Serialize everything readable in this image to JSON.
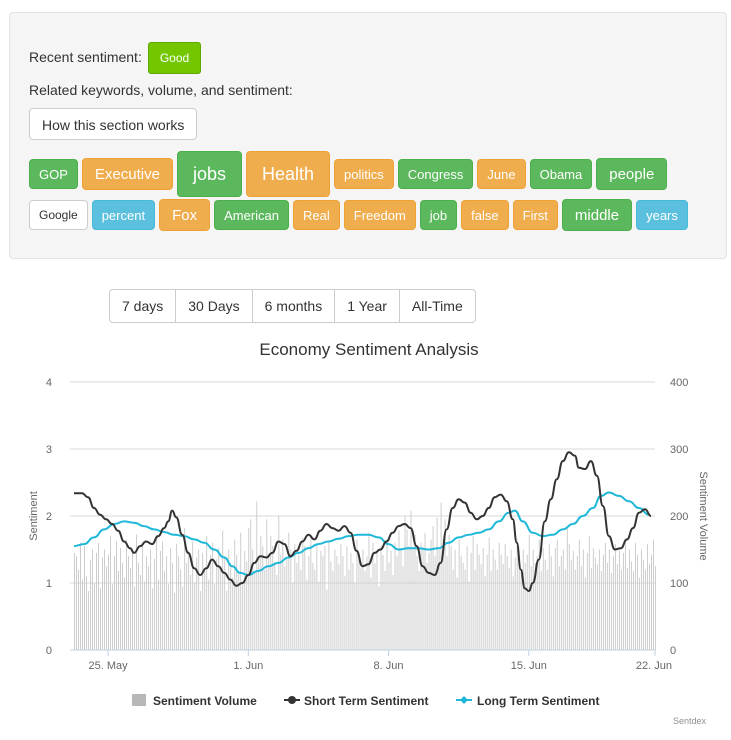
{
  "panel": {
    "recent_label": "Recent sentiment:",
    "recent_value": "Good",
    "related_label": "Related keywords, volume, and sentiment:",
    "how_button": "How this section works",
    "keywords_row1": [
      {
        "text": "GOP",
        "color": "green",
        "size": 13
      },
      {
        "text": "Executive",
        "color": "orange",
        "size": 15
      },
      {
        "text": "jobs",
        "color": "green",
        "size": 18
      },
      {
        "text": "Health",
        "color": "orange",
        "size": 18
      },
      {
        "text": "politics",
        "color": "orange",
        "size": 13
      },
      {
        "text": "Congress",
        "color": "green",
        "size": 13
      },
      {
        "text": "June",
        "color": "orange",
        "size": 13
      },
      {
        "text": "Obama",
        "color": "green",
        "size": 13
      },
      {
        "text": "people",
        "color": "green",
        "size": 15
      }
    ],
    "keywords_row2": [
      {
        "text": "Google",
        "color": "white",
        "size": 12
      },
      {
        "text": "percent",
        "color": "blue",
        "size": 13
      },
      {
        "text": "Fox",
        "color": "orange",
        "size": 15
      },
      {
        "text": "American",
        "color": "green",
        "size": 13
      },
      {
        "text": "Real",
        "color": "orange",
        "size": 13
      },
      {
        "text": "Freedom",
        "color": "orange",
        "size": 13
      },
      {
        "text": "job",
        "color": "green",
        "size": 13
      },
      {
        "text": "false",
        "color": "orange",
        "size": 13
      },
      {
        "text": "First",
        "color": "orange",
        "size": 13
      },
      {
        "text": "middle",
        "color": "green",
        "size": 15
      },
      {
        "text": "years",
        "color": "blue",
        "size": 13
      }
    ]
  },
  "range_buttons": [
    "7 days",
    "30 Days",
    "6 months",
    "1 Year",
    "All-Time"
  ],
  "credit": "Sentdex",
  "chart_data": {
    "type": "line",
    "title": "Economy Sentiment Analysis",
    "ylabel_left": "Sentiment",
    "ylabel_right": "Sentiment Volume",
    "ylim_left": [
      0,
      4
    ],
    "yticks_left": [
      "0",
      "1",
      "2",
      "3",
      "4"
    ],
    "ylim_right": [
      0,
      400
    ],
    "yticks_right": [
      "0",
      "100",
      "200",
      "300",
      "400"
    ],
    "x_range_days": [
      23.1,
      52.3
    ],
    "x_ticks": [
      {
        "label": "25. May",
        "day": 25
      },
      {
        "label": "1. Jun",
        "day": 32
      },
      {
        "label": "8. Jun",
        "day": 39
      },
      {
        "label": "15. Jun",
        "day": 46
      },
      {
        "label": "22. Jun",
        "day": 53
      }
    ],
    "grid": true,
    "legend_position": "bottom",
    "series": [
      {
        "name": "Short Term Sentiment",
        "color": "#333333",
        "points": [
          [
            23.3,
            2.34
          ],
          [
            23.7,
            2.34
          ],
          [
            24.0,
            2.28
          ],
          [
            24.3,
            2.12
          ],
          [
            24.6,
            2.02
          ],
          [
            24.9,
            1.95
          ],
          [
            25.2,
            1.88
          ],
          [
            25.5,
            1.78
          ],
          [
            25.8,
            1.62
          ],
          [
            26.1,
            1.52
          ],
          [
            26.3,
            1.45
          ],
          [
            26.6,
            1.55
          ],
          [
            26.9,
            1.62
          ],
          [
            27.2,
            1.58
          ],
          [
            27.5,
            1.7
          ],
          [
            27.8,
            1.82
          ],
          [
            28.0,
            1.92
          ],
          [
            28.2,
            2.08
          ],
          [
            28.4,
            1.98
          ],
          [
            28.7,
            1.72
          ],
          [
            29.0,
            1.45
          ],
          [
            29.3,
            1.22
          ],
          [
            29.6,
            1.12
          ],
          [
            29.9,
            1.22
          ],
          [
            30.2,
            1.35
          ],
          [
            30.5,
            1.25
          ],
          [
            30.8,
            1.15
          ],
          [
            31.1,
            1.05
          ],
          [
            31.4,
            0.96
          ],
          [
            31.7,
            1.0
          ],
          [
            32.0,
            1.12
          ],
          [
            32.3,
            1.3
          ],
          [
            32.6,
            1.4
          ],
          [
            32.9,
            1.38
          ],
          [
            33.2,
            1.45
          ],
          [
            33.5,
            1.62
          ],
          [
            33.8,
            1.58
          ],
          [
            34.1,
            1.4
          ],
          [
            34.4,
            1.48
          ],
          [
            34.7,
            1.62
          ],
          [
            35.0,
            1.72
          ],
          [
            35.3,
            1.65
          ],
          [
            35.6,
            1.78
          ],
          [
            35.9,
            1.88
          ],
          [
            36.2,
            1.82
          ],
          [
            36.5,
            1.78
          ],
          [
            36.8,
            1.85
          ],
          [
            37.1,
            1.75
          ],
          [
            37.4,
            1.48
          ],
          [
            37.7,
            1.25
          ],
          [
            38.0,
            1.28
          ],
          [
            38.3,
            1.45
          ],
          [
            38.6,
            1.5
          ],
          [
            38.9,
            1.62
          ],
          [
            39.2,
            1.75
          ],
          [
            39.5,
            1.85
          ],
          [
            39.8,
            1.88
          ],
          [
            40.1,
            1.82
          ],
          [
            40.4,
            1.55
          ],
          [
            40.7,
            1.25
          ],
          [
            41.0,
            1.15
          ],
          [
            41.3,
            1.12
          ],
          [
            41.6,
            1.3
          ],
          [
            41.9,
            1.8
          ],
          [
            42.2,
            2.12
          ],
          [
            42.5,
            2.25
          ],
          [
            42.8,
            2.2
          ],
          [
            43.1,
            2.05
          ],
          [
            43.4,
            1.95
          ],
          [
            43.7,
            2.0
          ],
          [
            44.0,
            2.12
          ],
          [
            44.3,
            2.28
          ],
          [
            44.6,
            2.32
          ],
          [
            44.9,
            2.22
          ],
          [
            45.2,
            1.95
          ],
          [
            45.4,
            1.6
          ],
          [
            45.6,
            1.2
          ],
          [
            45.8,
            0.92
          ],
          [
            46.0,
            0.88
          ],
          [
            46.2,
            1.0
          ],
          [
            46.5,
            1.35
          ],
          [
            46.8,
            1.92
          ],
          [
            47.1,
            2.25
          ],
          [
            47.4,
            2.55
          ],
          [
            47.7,
            2.82
          ],
          [
            48.0,
            2.95
          ],
          [
            48.3,
            2.9
          ],
          [
            48.5,
            2.72
          ],
          [
            48.8,
            2.7
          ],
          [
            49.1,
            2.82
          ],
          [
            49.4,
            2.6
          ],
          [
            49.7,
            2.15
          ],
          [
            50.0,
            1.7
          ],
          [
            50.3,
            1.5
          ],
          [
            50.6,
            1.52
          ],
          [
            50.9,
            1.65
          ],
          [
            51.2,
            1.82
          ],
          [
            51.5,
            2.05
          ],
          [
            51.8,
            2.1
          ],
          [
            52.1,
            2.0
          ],
          [
            52.4,
            1.88
          ],
          [
            52.7,
            2.0
          ],
          [
            53.0,
            2.05
          ],
          [
            53.3,
            1.92
          ],
          [
            53.6,
            1.95
          ],
          [
            53.9,
            1.92
          ]
        ]
      },
      {
        "name": "Long Term Sentiment",
        "color": "#1fb8d8",
        "points": [
          [
            23.3,
            1.55
          ],
          [
            23.8,
            1.58
          ],
          [
            24.3,
            1.68
          ],
          [
            24.8,
            1.8
          ],
          [
            25.3,
            1.88
          ],
          [
            25.8,
            1.92
          ],
          [
            26.3,
            1.9
          ],
          [
            26.8,
            1.85
          ],
          [
            27.3,
            1.8
          ],
          [
            27.8,
            1.76
          ],
          [
            28.3,
            1.72
          ],
          [
            28.8,
            1.7
          ],
          [
            29.3,
            1.65
          ],
          [
            29.8,
            1.6
          ],
          [
            30.3,
            1.5
          ],
          [
            30.8,
            1.38
          ],
          [
            31.2,
            1.25
          ],
          [
            31.6,
            1.15
          ],
          [
            32.0,
            1.12
          ],
          [
            32.5,
            1.18
          ],
          [
            33.0,
            1.25
          ],
          [
            33.5,
            1.3
          ],
          [
            34.0,
            1.38
          ],
          [
            34.5,
            1.45
          ],
          [
            35.0,
            1.52
          ],
          [
            35.5,
            1.58
          ],
          [
            36.0,
            1.62
          ],
          [
            36.5,
            1.66
          ],
          [
            37.0,
            1.7
          ],
          [
            37.5,
            1.72
          ],
          [
            38.0,
            1.72
          ],
          [
            38.5,
            1.68
          ],
          [
            39.0,
            1.58
          ],
          [
            39.5,
            1.5
          ],
          [
            40.0,
            1.52
          ],
          [
            40.5,
            1.52
          ],
          [
            41.0,
            1.5
          ],
          [
            41.5,
            1.52
          ],
          [
            42.0,
            1.6
          ],
          [
            42.5,
            1.68
          ],
          [
            43.0,
            1.72
          ],
          [
            43.5,
            1.75
          ],
          [
            44.0,
            1.8
          ],
          [
            44.5,
            1.92
          ],
          [
            45.0,
            2.05
          ],
          [
            45.3,
            2.08
          ],
          [
            45.7,
            1.92
          ],
          [
            46.2,
            1.75
          ],
          [
            46.7,
            1.7
          ],
          [
            47.2,
            1.72
          ],
          [
            47.7,
            1.8
          ],
          [
            48.2,
            1.88
          ],
          [
            48.7,
            2.0
          ],
          [
            49.2,
            2.12
          ],
          [
            49.6,
            2.3
          ],
          [
            50.0,
            2.35
          ],
          [
            50.5,
            2.3
          ],
          [
            51.0,
            2.22
          ],
          [
            51.5,
            2.12
          ],
          [
            52.0,
            2.02
          ],
          [
            52.5,
            1.92
          ],
          [
            52.8,
            1.82
          ],
          [
            53.2,
            1.85
          ],
          [
            53.6,
            1.92
          ],
          [
            53.9,
            1.9
          ]
        ]
      }
    ],
    "volume_series": {
      "name": "Sentiment Volume",
      "color": "#c8c8c8",
      "start_day": 23.3,
      "step_days": 0.1,
      "values": [
        145,
        140,
        120,
        160,
        105,
        155,
        110,
        88,
        135,
        150,
        100,
        145,
        160,
        92,
        138,
        150,
        125,
        142,
        170,
        98,
        140,
        162,
        118,
        152,
        130,
        108,
        165,
        140,
        122,
        148,
        95,
        172,
        130,
        112,
        158,
        102,
        140,
        125,
        150,
        92,
        136,
        170,
        105,
        148,
        162,
        118,
        140,
        98,
        152,
        130,
        85,
        158,
        140,
        120,
        95,
        182,
        130,
        148,
        112,
        162,
        100,
        138,
        150,
        88,
        145,
        122,
        170,
        105,
        142,
        160,
        98,
        135,
        152,
        120,
        178,
        140,
        88,
        150,
        130,
        108,
        165,
        142,
        118,
        175,
        100,
        148,
        132,
        182,
        195,
        150,
        118,
        222,
        140,
        170,
        155,
        120,
        195,
        140,
        170,
        155,
        130,
        112,
        200,
        142,
        165,
        125,
        138,
        175,
        150,
        100,
        158,
        130,
        142,
        120,
        168,
        155,
        105,
        140,
        172,
        130,
        120,
        158,
        102,
        148,
        140,
        155,
        90,
        162,
        132,
        118,
        150,
        140,
        128,
        158,
        140,
        110,
        155,
        120,
        145,
        130,
        100,
        165,
        142,
        122,
        150,
        118,
        140,
        175,
        108,
        160,
        130,
        148,
        95,
        155,
        142,
        118,
        165,
        130,
        148,
        112,
        160,
        140,
        178,
        152,
        125,
        200,
        180,
        155,
        208,
        150,
        172,
        140,
        118,
        160,
        150,
        175,
        130,
        145,
        165,
        185,
        140,
        198,
        150,
        220,
        165,
        195,
        140,
        172,
        155,
        120,
        150,
        108,
        165,
        140,
        130,
        120,
        155,
        102,
        145,
        170,
        120,
        158,
        142,
        128,
        152,
        110,
        142,
        168,
        118,
        150,
        135,
        120,
        160,
        142,
        128,
        158,
        140,
        122,
        150,
        110,
        138,
        165,
        142,
        120,
        150,
        130,
        142,
        172,
        125,
        150,
        130,
        140,
        165,
        118,
        152,
        135,
        120,
        158,
        140,
        110,
        152,
        165,
        125,
        140,
        150,
        120,
        182,
        158,
        135,
        148,
        120,
        140,
        165,
        125,
        150,
        108,
        145,
        170,
        122,
        152,
        138,
        128,
        150,
        118,
        142,
        160,
        130,
        150,
        115,
        140,
        158,
        128,
        148,
        120,
        145,
        162,
        122,
        150,
        132,
        118,
        160,
        142,
        108,
        150,
        135,
        120,
        158,
        128,
        142,
        165,
        125,
        150,
        118,
        140,
        172,
        130,
        125,
        152,
        138,
        160,
        128,
        148,
        120,
        142,
        102,
        155,
        158,
        118,
        132,
        148,
        165,
        150,
        125,
        160,
        120,
        168,
        140,
        130,
        155,
        118,
        145,
        128,
        100,
        158,
        145,
        122,
        162,
        138,
        150,
        128,
        105,
        160,
        140,
        122,
        150,
        135,
        118,
        158,
        142,
        128,
        150,
        120
      ]
    }
  }
}
